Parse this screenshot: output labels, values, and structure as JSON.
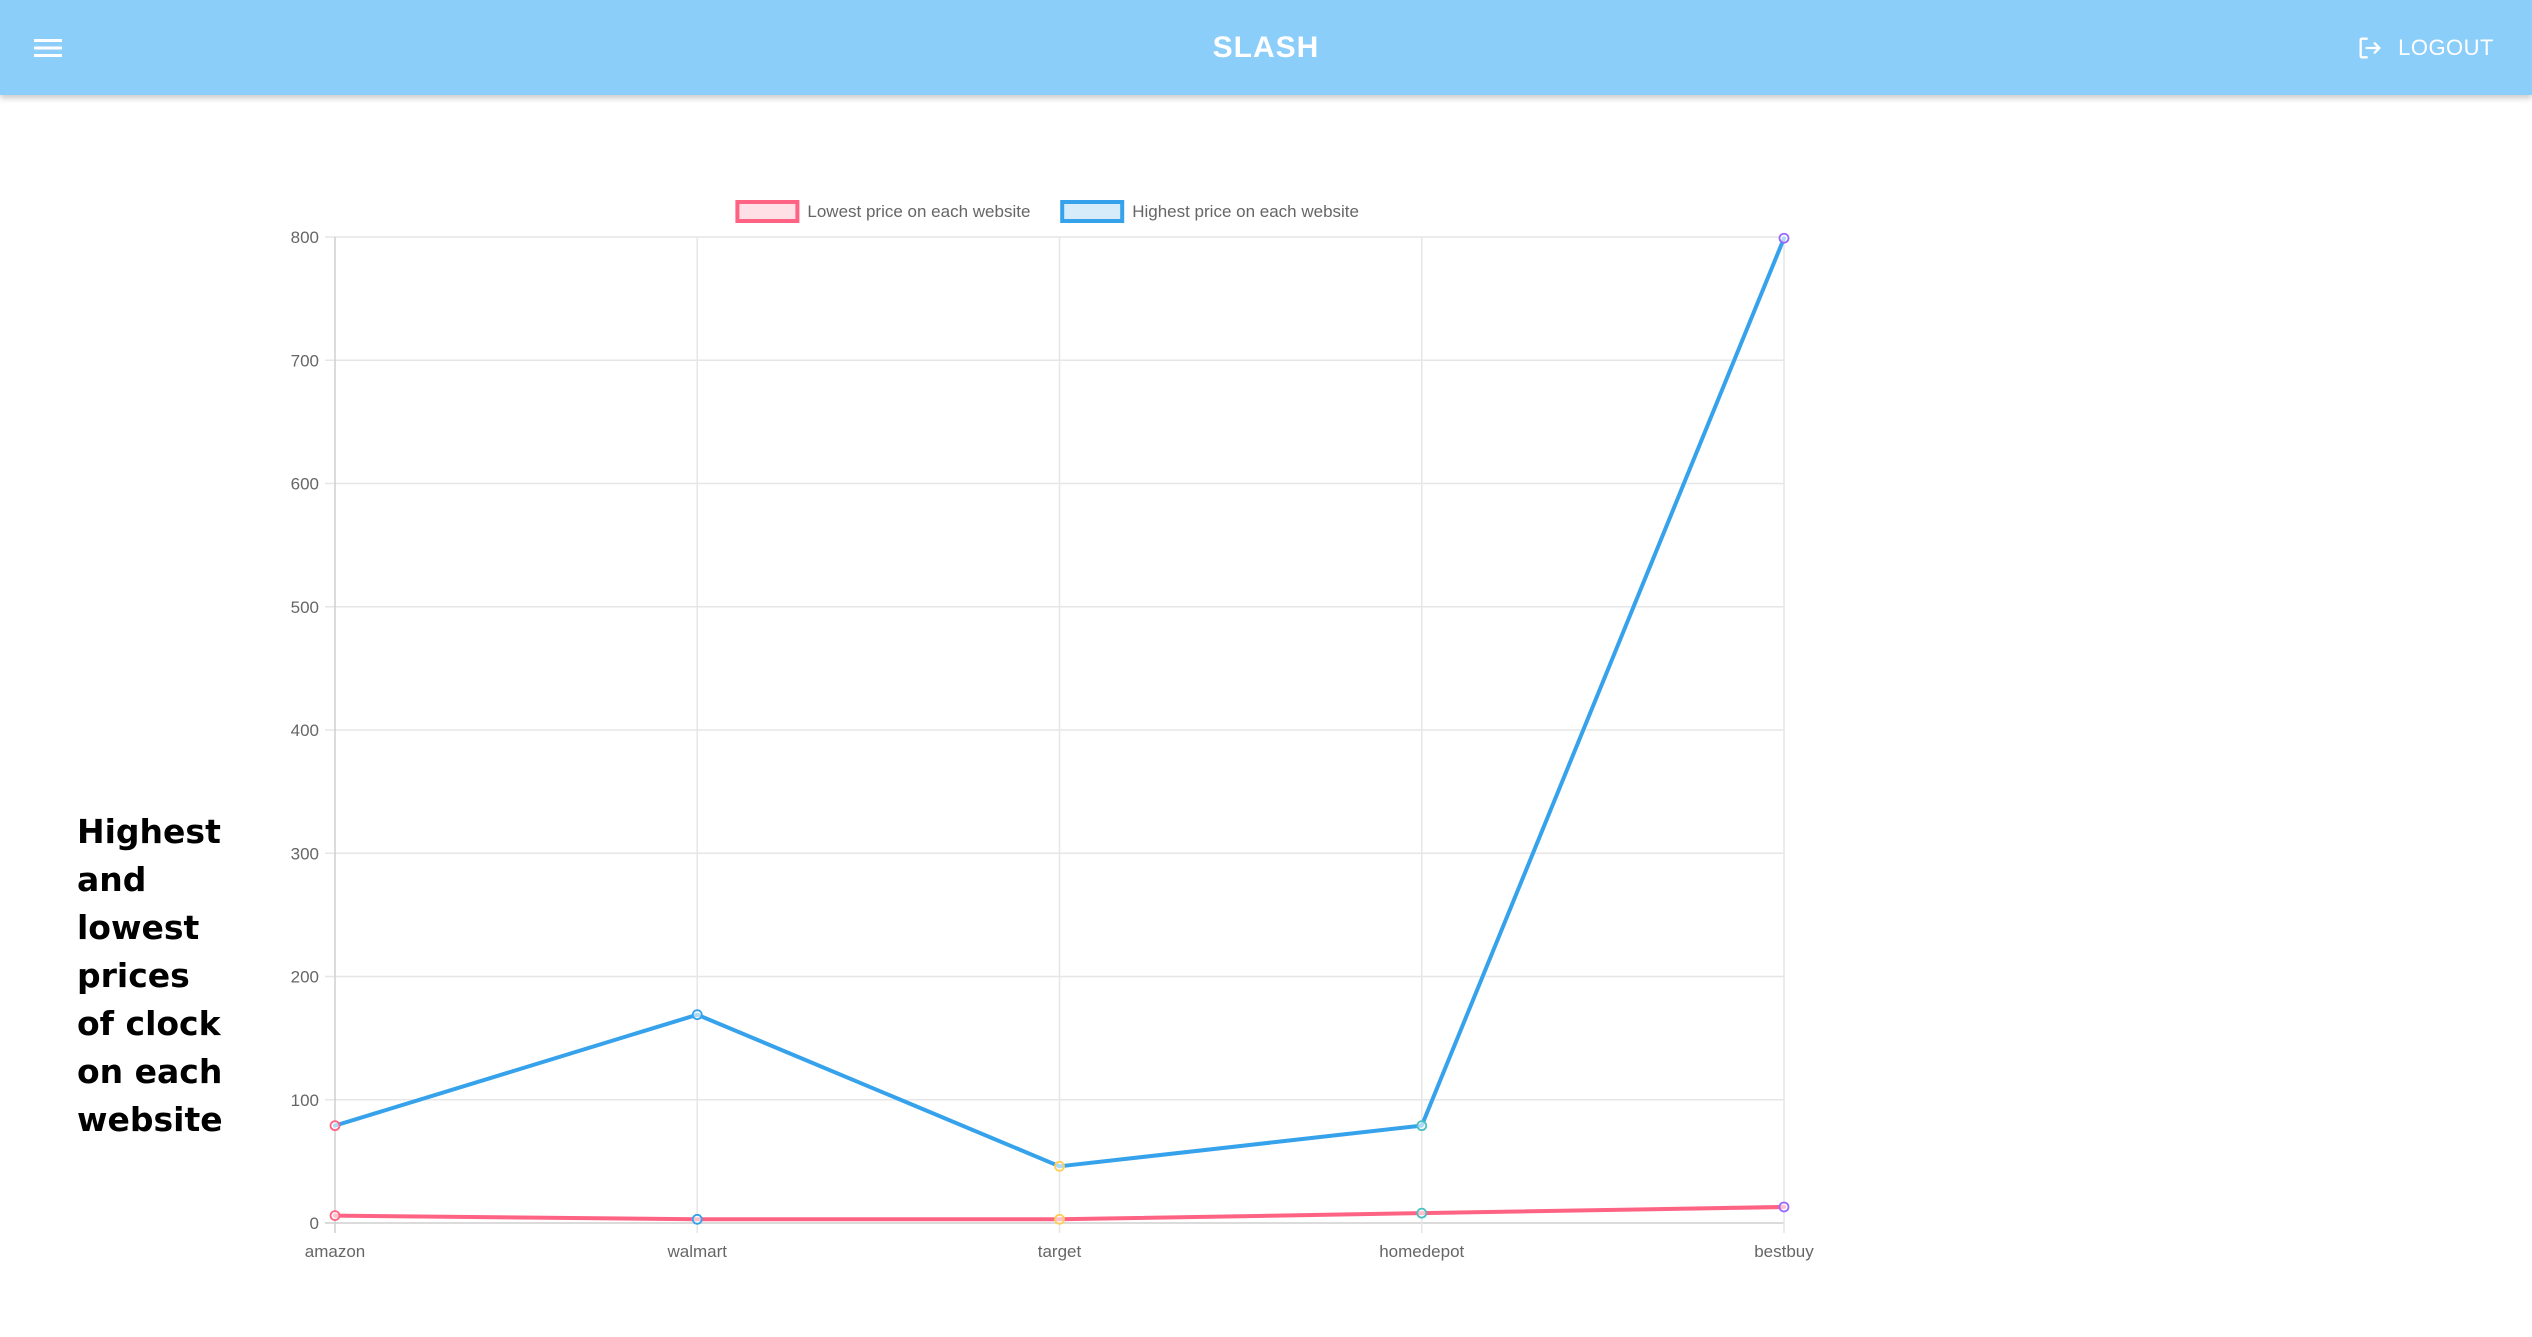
{
  "appbar": {
    "title": "SLASH",
    "logout_label": "LOGOUT",
    "menu_icon": "hamburger-menu-icon",
    "logout_icon": "logout-icon",
    "background": "#8ccefa"
  },
  "caption": "Highest and lowest prices of clock on each website",
  "chart_data": {
    "type": "line",
    "categories": [
      "amazon",
      "walmart",
      "target",
      "homedepot",
      "bestbuy"
    ],
    "ylim": [
      0,
      800
    ],
    "yticks": [
      "0",
      "100",
      "200",
      "300",
      "400",
      "500",
      "600",
      "700",
      "800"
    ],
    "grid": true,
    "legend_position": "top",
    "series": [
      {
        "name": "Lowest price on each website",
        "values": [
          6,
          3,
          3,
          8,
          13
        ],
        "color": "#ff6384",
        "fill": "rgba(255,99,132,0.2)"
      },
      {
        "name": "Highest price on each website",
        "values": [
          79,
          169,
          46,
          79,
          799
        ],
        "color": "#36a2eb",
        "fill": "rgba(54,162,235,0.2)"
      }
    ],
    "point_colors": [
      "#ff6384",
      "#36a2eb",
      "#ffce56",
      "#4bc0c0",
      "#9966ff"
    ]
  }
}
